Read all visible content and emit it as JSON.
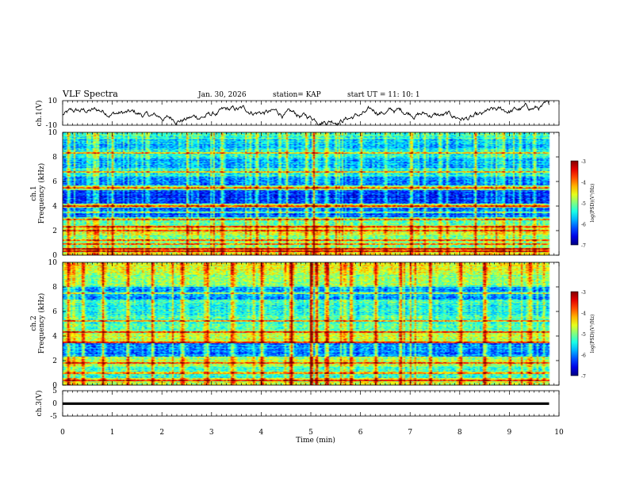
{
  "header": {
    "title": "VLF Spectra",
    "date": "Jan. 30, 2026",
    "station": "station= KAP",
    "start": "start  UT =   11: 10: 1"
  },
  "chart_data": [
    {
      "type": "line",
      "name": "ch1-waveform",
      "ylabel": "ch.1(V)",
      "ylim": [
        -10,
        10
      ],
      "yticks": [
        "10",
        "-10"
      ],
      "x_range_min": [
        0,
        9.8
      ]
    },
    {
      "type": "heatmap",
      "name": "ch1-spectrogram",
      "ylabel_line1": "ch.1",
      "ylabel_line2": "Frequency (kHz)",
      "ylim": [
        0,
        10
      ],
      "yticks": [
        "0",
        "2",
        "4",
        "6",
        "8",
        "10"
      ],
      "xlim_min": [
        0,
        9.8
      ],
      "colorbar": {
        "label": "log(PSD)(V²/Hz)",
        "range": [
          -7,
          -3
        ],
        "ticks": [
          "-3",
          "-4",
          "-5",
          "-6",
          "-7"
        ]
      },
      "bands_khz": [
        {
          "from": 0.0,
          "to": 0.6,
          "level": -4.4
        },
        {
          "from": 0.6,
          "to": 1.6,
          "level": -5.0
        },
        {
          "from": 1.6,
          "to": 2.4,
          "level": -4.6
        },
        {
          "from": 2.4,
          "to": 3.1,
          "level": -5.1
        },
        {
          "from": 3.1,
          "to": 3.9,
          "level": -6.1
        },
        {
          "from": 3.9,
          "to": 4.2,
          "level": -4.8
        },
        {
          "from": 4.2,
          "to": 5.3,
          "level": -6.3
        },
        {
          "from": 5.3,
          "to": 5.7,
          "level": -5.0
        },
        {
          "from": 5.7,
          "to": 6.4,
          "level": -6.0
        },
        {
          "from": 6.4,
          "to": 7.1,
          "level": -5.4
        },
        {
          "from": 7.1,
          "to": 7.9,
          "level": -5.8
        },
        {
          "from": 7.9,
          "to": 8.6,
          "level": -5.4
        },
        {
          "from": 8.6,
          "to": 9.4,
          "level": -5.7
        },
        {
          "from": 9.4,
          "to": 10.0,
          "level": -5.3
        }
      ],
      "lines_khz": [
        0.3,
        0.5,
        0.9,
        1.2,
        2.0,
        2.3,
        2.9,
        3.5,
        4.0,
        5.5,
        6.8,
        8.3
      ],
      "bursts_min": [
        0.1,
        0.5,
        1.0,
        1.7,
        2.5,
        3.2,
        3.9,
        4.5,
        4.9,
        5.05,
        5.3,
        6.0,
        6.5,
        7.0,
        7.6,
        8.3,
        8.8,
        9.2,
        9.5
      ],
      "bursts_strength": [
        0.5,
        0.4,
        0.4,
        0.4,
        0.5,
        0.4,
        0.5,
        0.5,
        0.6,
        0.9,
        0.5,
        0.5,
        0.4,
        0.5,
        0.4,
        0.6,
        0.4,
        0.4,
        0.4
      ]
    },
    {
      "type": "heatmap",
      "name": "ch2-spectrogram",
      "ylabel_line1": "ch.2",
      "ylabel_line2": "Frequency (kHz)",
      "ylim": [
        0,
        10
      ],
      "yticks": [
        "0",
        "2",
        "4",
        "6",
        "8",
        "10"
      ],
      "xlim_min": [
        0,
        9.8
      ],
      "colorbar": {
        "label": "log(PSD)(V²/Hz)",
        "range": [
          -7,
          -3
        ],
        "ticks": [
          "-3",
          "-4",
          "-5",
          "-6",
          "-7"
        ]
      },
      "bands_khz": [
        {
          "from": 0.0,
          "to": 0.6,
          "level": -4.6
        },
        {
          "from": 0.6,
          "to": 1.5,
          "level": -5.3
        },
        {
          "from": 1.5,
          "to": 2.3,
          "level": -4.8
        },
        {
          "from": 2.3,
          "to": 3.4,
          "level": -6.0
        },
        {
          "from": 3.4,
          "to": 4.4,
          "level": -4.7
        },
        {
          "from": 4.4,
          "to": 5.6,
          "level": -5.2
        },
        {
          "from": 5.6,
          "to": 7.0,
          "level": -5.4
        },
        {
          "from": 7.0,
          "to": 8.0,
          "level": -5.9
        },
        {
          "from": 8.0,
          "to": 9.0,
          "level": -5.0
        },
        {
          "from": 9.0,
          "to": 10.0,
          "level": -4.6
        }
      ],
      "lines_khz": [
        0.4,
        1.0,
        1.8,
        3.5,
        4.3,
        5.2,
        7.5
      ],
      "bursts_min": [
        0.1,
        0.4,
        0.8,
        1.3,
        1.8,
        2.4,
        2.9,
        3.4,
        4.0,
        4.6,
        5.0,
        5.1,
        5.3,
        5.8,
        6.3,
        6.8,
        7.4,
        8.0,
        8.5,
        9.0,
        9.4
      ],
      "bursts_strength": [
        0.7,
        0.6,
        0.6,
        0.7,
        0.6,
        0.7,
        0.6,
        0.6,
        0.7,
        0.7,
        1.0,
        0.9,
        0.7,
        0.7,
        0.6,
        0.7,
        0.6,
        0.7,
        0.6,
        0.6,
        0.6
      ]
    },
    {
      "type": "line",
      "name": "ch3-waveform",
      "ylabel": "ch.3(V)",
      "ylim": [
        -5,
        5
      ],
      "yticks": [
        "5",
        "0",
        "-5"
      ],
      "level_v": [
        -0.6,
        0.4
      ],
      "x_range_min": [
        0,
        9.8
      ]
    }
  ],
  "xaxis": {
    "label": "Time (min)",
    "ticks": [
      "0",
      "1",
      "2",
      "3",
      "4",
      "5",
      "6",
      "7",
      "8",
      "9",
      "10"
    ],
    "range": [
      0,
      10
    ]
  }
}
